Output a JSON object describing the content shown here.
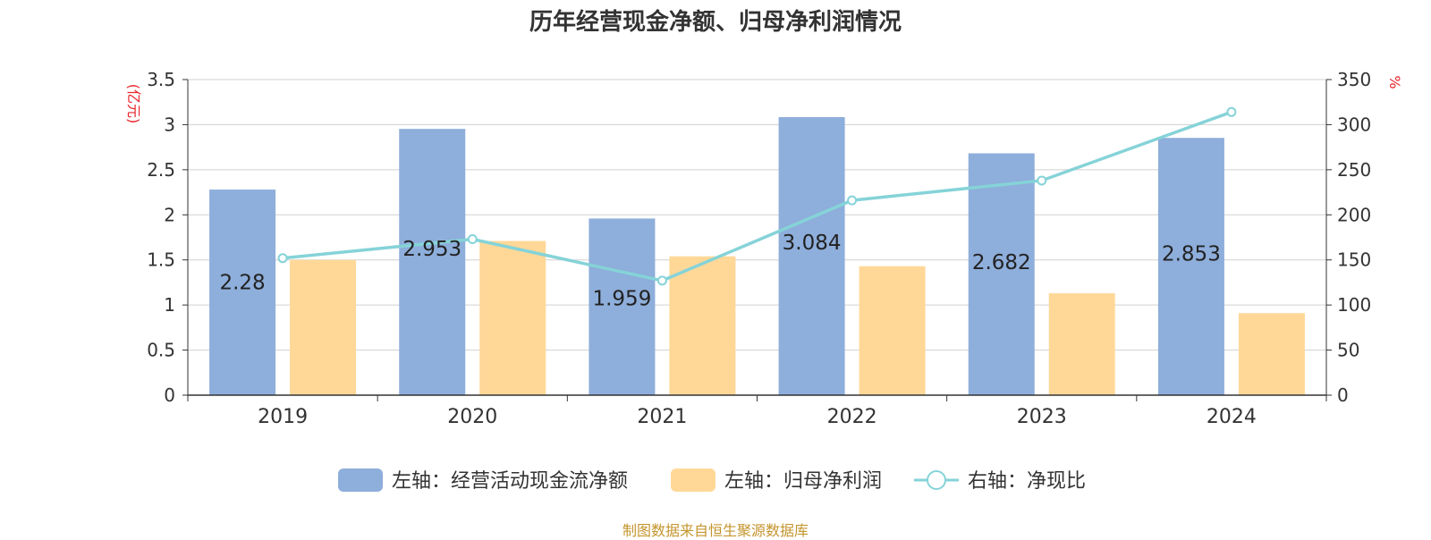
{
  "title": "历年经营现金净额、归母净利润情况",
  "source": "制图数据来自恒生聚源数据库",
  "chart_data": {
    "type": "bar",
    "categories": [
      "2019",
      "2020",
      "2021",
      "2022",
      "2023",
      "2024"
    ],
    "y_left": {
      "label": "(亿元)",
      "range": [
        0,
        3.5
      ],
      "ticks": [
        "0",
        "0.5",
        "1",
        "1.5",
        "2",
        "2.5",
        "3",
        "3.5"
      ]
    },
    "y_right": {
      "label": "%",
      "range": [
        0,
        350
      ],
      "ticks": [
        "0",
        "50",
        "100",
        "150",
        "200",
        "250",
        "300",
        "350"
      ]
    },
    "grid": true,
    "legend_position": "bottom",
    "series": [
      {
        "name": "左轴：经营活动现金流净额",
        "type": "bar",
        "axis": "left",
        "color": "#8eaedb",
        "values": [
          2.28,
          2.953,
          1.959,
          3.084,
          2.682,
          2.853
        ],
        "labels": [
          "2.28",
          "2.953",
          "1.959",
          "3.084",
          "2.682",
          "2.853"
        ]
      },
      {
        "name": "左轴：归母净利润",
        "type": "bar",
        "axis": "left",
        "color": "#ffd898",
        "values": [
          1.5,
          1.71,
          1.54,
          1.43,
          1.13,
          0.91
        ]
      },
      {
        "name": "右轴：净现比",
        "type": "line",
        "axis": "right",
        "color": "#85d3d8",
        "values": [
          152,
          173,
          127,
          216,
          238,
          314
        ]
      }
    ]
  }
}
